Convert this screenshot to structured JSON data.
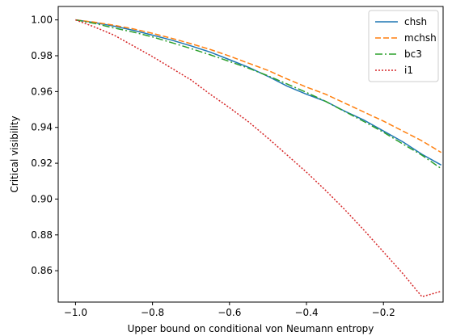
{
  "chart_data": {
    "type": "line",
    "title": "",
    "xlabel": "Upper bound on conditional von Neumann entropy",
    "ylabel": "Critical visibility",
    "xlim": [
      -1.045,
      -0.045
    ],
    "ylim": [
      0.8425,
      1.0075
    ],
    "xticks": [
      -1.0,
      -0.8,
      -0.6,
      -0.4,
      -0.2
    ],
    "xtick_labels": [
      "−1.0",
      "−0.8",
      "−0.6",
      "−0.4",
      "−0.2"
    ],
    "yticks": [
      0.86,
      0.88,
      0.9,
      0.92,
      0.94,
      0.96,
      0.98,
      1.0
    ],
    "ytick_labels": [
      "0.86",
      "0.88",
      "0.90",
      "0.92",
      "0.94",
      "0.96",
      "0.98",
      "1.00"
    ],
    "grid": false,
    "legend_position": "top-right",
    "series": [
      {
        "name": "chsh",
        "color": "#1f77b4",
        "style": "solid",
        "x": [
          -1.0,
          -0.95,
          -0.9,
          -0.85,
          -0.8,
          -0.75,
          -0.7,
          -0.65,
          -0.6,
          -0.55,
          -0.5,
          -0.45,
          -0.4,
          -0.35,
          -0.3,
          -0.25,
          -0.2,
          -0.15,
          -0.1,
          -0.05
        ],
        "y": [
          1.0,
          0.9985,
          0.9965,
          0.9942,
          0.9915,
          0.9887,
          0.9855,
          0.982,
          0.9778,
          0.9735,
          0.9685,
          0.963,
          0.9585,
          0.9545,
          0.949,
          0.944,
          0.938,
          0.932,
          0.925,
          0.919
        ]
      },
      {
        "name": "mchsh",
        "color": "#ff7f0e",
        "style": "dashed",
        "x": [
          -1.0,
          -0.95,
          -0.9,
          -0.85,
          -0.8,
          -0.75,
          -0.7,
          -0.65,
          -0.6,
          -0.55,
          -0.5,
          -0.45,
          -0.4,
          -0.35,
          -0.3,
          -0.25,
          -0.2,
          -0.15,
          -0.1,
          -0.05
        ],
        "y": [
          1.0,
          0.9987,
          0.997,
          0.995,
          0.9925,
          0.9897,
          0.9867,
          0.9835,
          0.9798,
          0.9758,
          0.9718,
          0.967,
          0.9625,
          0.9585,
          0.9535,
          0.9485,
          0.9435,
          0.938,
          0.9325,
          0.926
        ]
      },
      {
        "name": "bc3",
        "color": "#2ca02c",
        "style": "dashdot",
        "x": [
          -1.0,
          -0.95,
          -0.9,
          -0.85,
          -0.8,
          -0.75,
          -0.7,
          -0.65,
          -0.6,
          -0.55,
          -0.5,
          -0.45,
          -0.4,
          -0.35,
          -0.3,
          -0.25,
          -0.2,
          -0.15,
          -0.1,
          -0.05
        ],
        "y": [
          1.0,
          0.998,
          0.9955,
          0.9932,
          0.9905,
          0.9873,
          0.984,
          0.9805,
          0.9768,
          0.973,
          0.9688,
          0.9642,
          0.9595,
          0.9545,
          0.9488,
          0.9432,
          0.9373,
          0.9308,
          0.9245,
          0.917
        ]
      },
      {
        "name": "i1",
        "color": "#d62728",
        "style": "dotted",
        "x": [
          -1.0,
          -0.95,
          -0.9,
          -0.85,
          -0.8,
          -0.75,
          -0.7,
          -0.65,
          -0.6,
          -0.55,
          -0.5,
          -0.45,
          -0.4,
          -0.35,
          -0.3,
          -0.25,
          -0.2,
          -0.15,
          -0.1,
          -0.05
        ],
        "y": [
          1.0,
          0.996,
          0.9915,
          0.9855,
          0.9795,
          0.973,
          0.9665,
          0.9585,
          0.951,
          0.943,
          0.934,
          0.9245,
          0.915,
          0.9048,
          0.894,
          0.8825,
          0.8705,
          0.8585,
          0.8455,
          0.8485
        ]
      }
    ]
  }
}
